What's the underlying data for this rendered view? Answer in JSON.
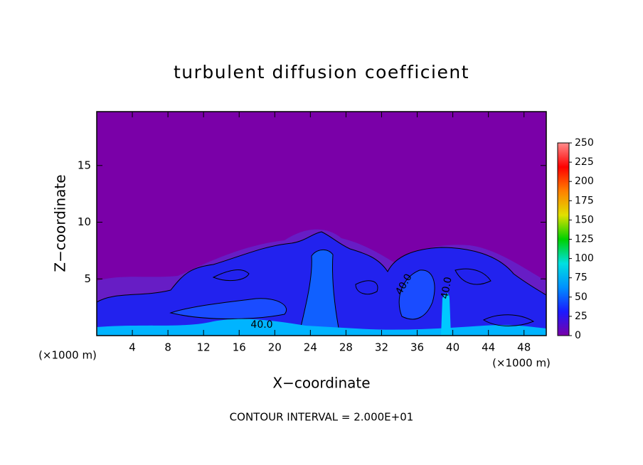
{
  "chart_data": {
    "type": "heatmap",
    "title": "turbulent diffusion coefficient",
    "x_label": "X−coordinate",
    "y_label": "Z−coordinate",
    "x_unit_label": "(×1000 m)",
    "footer": "CONTOUR INTERVAL = 2.000E+01",
    "xlim": [
      0,
      50.5
    ],
    "xticks": [
      4,
      8,
      12,
      16,
      20,
      24,
      28,
      32,
      36,
      40,
      44,
      48
    ],
    "ylim": [
      0,
      19.75
    ],
    "yticks": [
      5,
      10,
      15
    ],
    "contour_labels": [
      "40.0",
      "40.0",
      "40.0"
    ],
    "colorbar": {
      "lim": [
        0,
        250
      ],
      "ticks": [
        0,
        25,
        50,
        75,
        100,
        125,
        150,
        175,
        200,
        225,
        250
      ],
      "colors": [
        "#7a00a8",
        "#1a1aff",
        "#0090ff",
        "#00e0e0",
        "#00d000",
        "#e0e000",
        "#ff8000",
        "#ff0000",
        "#ff8c8c"
      ]
    }
  }
}
